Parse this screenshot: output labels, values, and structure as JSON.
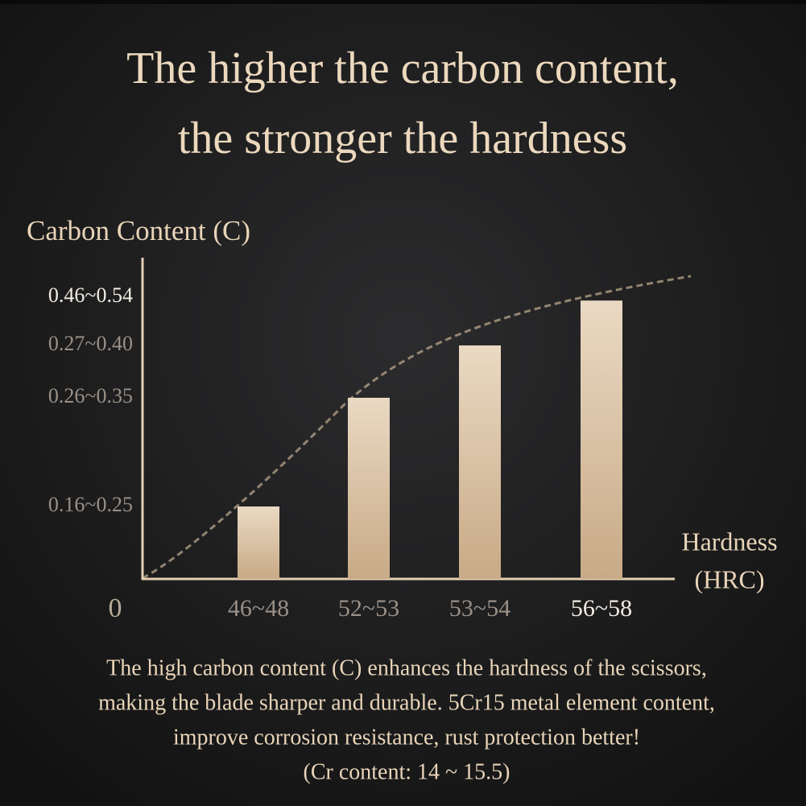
{
  "chart_data": {
    "type": "bar",
    "title": [
      "The higher the carbon content,",
      "the stronger the hardness"
    ],
    "y_label": "Carbon Content (C)",
    "x_label": [
      "Hardness",
      "(HRC)"
    ],
    "categories": [
      "46~48",
      "52~53",
      "53~54",
      "56~58"
    ],
    "values": [
      0.25,
      0.35,
      0.4,
      0.53
    ],
    "yticks": [
      0,
      {
        "value": 0.25,
        "label": "0.16~0.25"
      },
      {
        "value": 0.35,
        "label": "0.26~0.35"
      },
      {
        "value": 0.4,
        "label": "0.27~0.40"
      },
      {
        "value": 0.54,
        "label": "0.46~0.54"
      }
    ],
    "description": [
      "The high carbon content (C) enhances the hardness of the scissors,",
      "making the blade sharper and durable. 5Cr15 metal element content,",
      "improve corrosion resistance, rust protection better!",
      "(Cr content: 14 ~ 15.5)"
    ]
  }
}
